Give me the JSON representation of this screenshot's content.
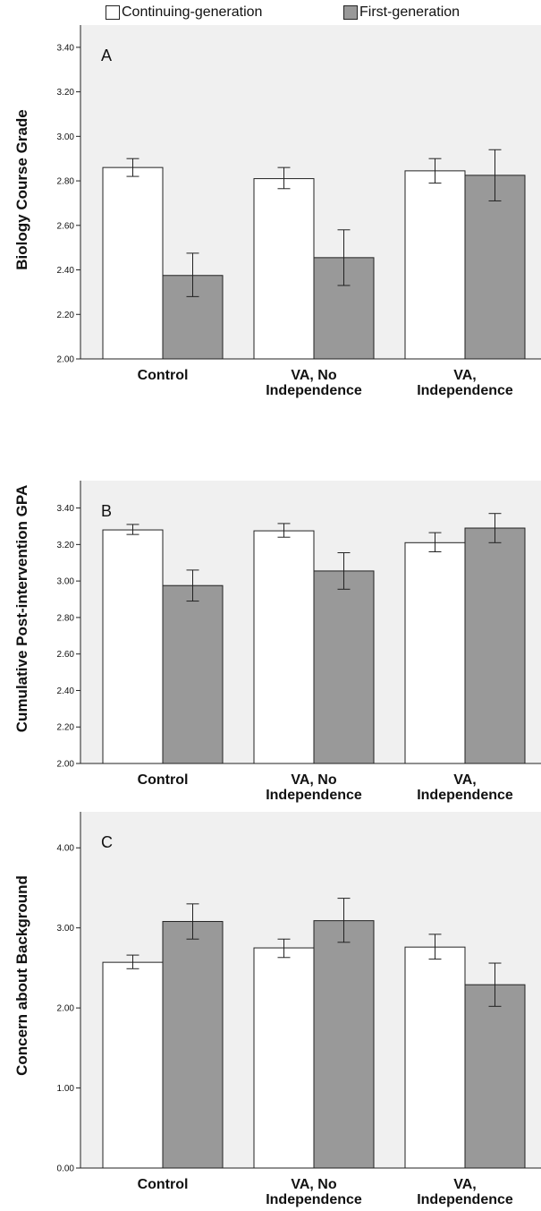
{
  "legend": {
    "placement": "top-center",
    "items": [
      {
        "label": "Continuing-generation",
        "color": "#ffffff"
      },
      {
        "label": "First-generation",
        "color": "#999999"
      }
    ]
  },
  "chart_data": [
    {
      "type": "bar",
      "panel_label": "A",
      "ylabel": "Biology Course Grade",
      "ylim": [
        2.0,
        3.5
      ],
      "yticks": [
        2.0,
        2.2,
        2.4,
        2.6,
        2.8,
        3.0,
        3.2,
        3.4
      ],
      "categories": [
        [
          "Control"
        ],
        [
          "VA, No",
          "Independence"
        ],
        [
          "VA,",
          "Independence"
        ]
      ],
      "series": [
        {
          "name": "Continuing-generation",
          "values": [
            2.86,
            2.81,
            2.845
          ],
          "err_low": [
            2.82,
            2.765,
            2.79
          ],
          "err_high": [
            2.9,
            2.86,
            2.9
          ]
        },
        {
          "name": "First-generation",
          "values": [
            2.375,
            2.455,
            2.825
          ],
          "err_low": [
            2.28,
            2.33,
            2.71
          ],
          "err_high": [
            2.475,
            2.58,
            2.94
          ]
        }
      ]
    },
    {
      "type": "bar",
      "panel_label": "B",
      "ylabel": "Cumulative  Post-intervention  GPA",
      "ylim": [
        2.0,
        3.55
      ],
      "yticks": [
        2.0,
        2.2,
        2.4,
        2.6,
        2.8,
        3.0,
        3.2,
        3.4
      ],
      "categories": [
        [
          "Control"
        ],
        [
          "VA, No",
          "Independence"
        ],
        [
          "VA,",
          "Independence"
        ]
      ],
      "series": [
        {
          "name": "Continuing-generation",
          "values": [
            3.28,
            3.275,
            3.21
          ],
          "err_low": [
            3.255,
            3.24,
            3.16
          ],
          "err_high": [
            3.31,
            3.315,
            3.265
          ]
        },
        {
          "name": "First-generation",
          "values": [
            2.975,
            3.055,
            3.29
          ],
          "err_low": [
            2.89,
            2.955,
            3.21
          ],
          "err_high": [
            3.06,
            3.155,
            3.37
          ]
        }
      ]
    },
    {
      "type": "bar",
      "panel_label": "C",
      "ylabel": "Concern about Background",
      "ylim": [
        0.0,
        4.45
      ],
      "yticks": [
        0.0,
        1.0,
        2.0,
        3.0,
        4.0
      ],
      "categories": [
        [
          "Control"
        ],
        [
          "VA, No",
          "Independence"
        ],
        [
          "VA,",
          "Independence"
        ]
      ],
      "series": [
        {
          "name": "Continuing-generation",
          "values": [
            2.57,
            2.75,
            2.76
          ],
          "err_low": [
            2.49,
            2.63,
            2.61
          ],
          "err_high": [
            2.66,
            2.86,
            2.92
          ]
        },
        {
          "name": "First-generation",
          "values": [
            3.08,
            3.09,
            2.29
          ],
          "err_low": [
            2.86,
            2.82,
            2.02
          ],
          "err_high": [
            3.3,
            3.37,
            2.56
          ]
        }
      ]
    }
  ]
}
